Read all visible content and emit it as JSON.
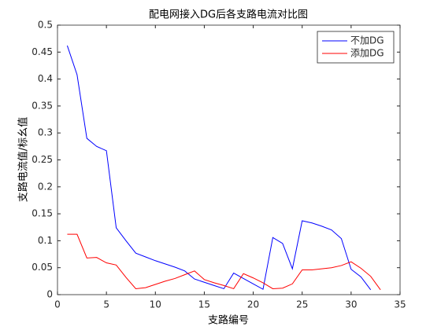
{
  "chart_data": {
    "type": "line",
    "title": "配电网接入DG后各支路电流对比图",
    "xlabel": "支路编号",
    "ylabel": "支路电流值/标幺值",
    "xlim": [
      0,
      35
    ],
    "xticks": [
      0,
      5,
      10,
      15,
      20,
      25,
      30,
      35
    ],
    "ylim": [
      0,
      0.5
    ],
    "yticks": [
      0,
      0.05,
      0.1,
      0.15,
      0.2,
      0.25,
      0.3,
      0.35,
      0.4,
      0.45,
      0.5
    ],
    "grid": false,
    "legend": "top-right",
    "series": [
      {
        "name": "不加DG",
        "color": "#0000ff",
        "x": [
          1,
          2,
          3,
          4,
          5,
          6,
          7,
          8,
          9,
          10,
          11,
          12,
          13,
          14,
          15,
          16,
          17,
          18,
          19,
          20,
          21,
          22,
          23,
          24,
          25,
          26,
          27,
          28,
          29,
          30,
          31,
          32
        ],
        "values": [
          0.462,
          0.408,
          0.29,
          0.275,
          0.267,
          0.124,
          0.1,
          0.077,
          0.07,
          0.063,
          0.057,
          0.051,
          0.044,
          0.029,
          0.023,
          0.017,
          0.011,
          0.04,
          0.03,
          0.02,
          0.01,
          0.106,
          0.095,
          0.048,
          0.137,
          0.133,
          0.127,
          0.12,
          0.104,
          0.047,
          0.033,
          0.009
        ]
      },
      {
        "name": "添加DG",
        "color": "#ff0000",
        "x": [
          1,
          2,
          3,
          4,
          5,
          6,
          7,
          8,
          9,
          10,
          11,
          12,
          13,
          14,
          15,
          16,
          17,
          18,
          19,
          20,
          21,
          22,
          23,
          24,
          25,
          26,
          27,
          28,
          29,
          30,
          31,
          32,
          33
        ],
        "values": [
          0.112,
          0.112,
          0.068,
          0.069,
          0.059,
          0.055,
          0.032,
          0.011,
          0.013,
          0.019,
          0.025,
          0.03,
          0.037,
          0.044,
          0.028,
          0.022,
          0.017,
          0.011,
          0.039,
          0.031,
          0.022,
          0.011,
          0.012,
          0.02,
          0.046,
          0.046,
          0.048,
          0.05,
          0.054,
          0.061,
          0.049,
          0.034,
          0.009
        ]
      }
    ]
  }
}
